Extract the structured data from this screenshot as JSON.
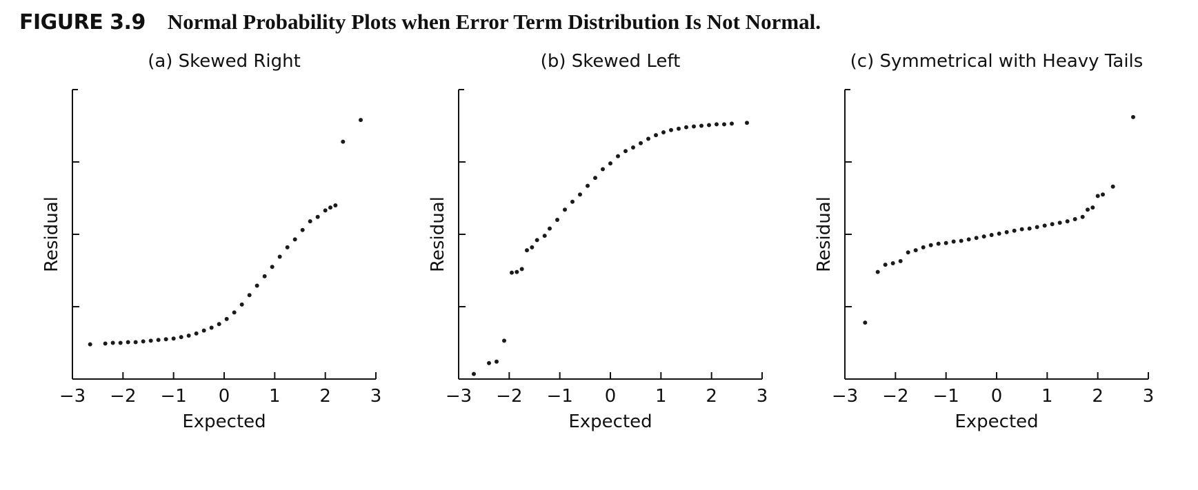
{
  "figure": {
    "label": "FIGURE 3.9",
    "title": "Normal Probability Plots when Error Term Distribution Is Not Normal."
  },
  "chart_data": [
    {
      "type": "scatter",
      "title": "(a) Skewed Right",
      "xlabel": "Expected",
      "ylabel": "Residual",
      "xlim": [
        -3,
        3
      ],
      "ylim": [
        -2,
        2
      ],
      "xticks": [
        "−3",
        "−2",
        "−1",
        "0",
        "1",
        "2",
        "3"
      ],
      "xtick_values": [
        -3,
        -2,
        -1,
        0,
        1,
        2,
        3
      ],
      "ytick_values": [
        -1,
        0,
        1
      ],
      "grid": false,
      "points": [
        [
          -2.65,
          -1.52
        ],
        [
          -2.35,
          -1.51
        ],
        [
          -2.2,
          -1.5
        ],
        [
          -2.05,
          -1.5
        ],
        [
          -1.9,
          -1.49
        ],
        [
          -1.75,
          -1.49
        ],
        [
          -1.6,
          -1.48
        ],
        [
          -1.45,
          -1.47
        ],
        [
          -1.3,
          -1.46
        ],
        [
          -1.15,
          -1.45
        ],
        [
          -1.0,
          -1.44
        ],
        [
          -0.85,
          -1.42
        ],
        [
          -0.7,
          -1.4
        ],
        [
          -0.55,
          -1.37
        ],
        [
          -0.4,
          -1.33
        ],
        [
          -0.25,
          -1.29
        ],
        [
          -0.1,
          -1.24
        ],
        [
          0.05,
          -1.17
        ],
        [
          0.2,
          -1.08
        ],
        [
          0.35,
          -0.97
        ],
        [
          0.5,
          -0.84
        ],
        [
          0.65,
          -0.71
        ],
        [
          0.8,
          -0.58
        ],
        [
          0.95,
          -0.45
        ],
        [
          1.1,
          -0.31
        ],
        [
          1.25,
          -0.18
        ],
        [
          1.4,
          -0.07
        ],
        [
          1.55,
          0.06
        ],
        [
          1.7,
          0.18
        ],
        [
          1.85,
          0.24
        ],
        [
          2.0,
          0.33
        ],
        [
          2.1,
          0.37
        ],
        [
          2.2,
          0.4
        ],
        [
          2.35,
          1.28
        ],
        [
          2.7,
          1.58
        ]
      ]
    },
    {
      "type": "scatter",
      "title": "(b) Skewed Left",
      "xlabel": "Expected",
      "ylabel": "Residual",
      "xlim": [
        -3,
        3
      ],
      "ylim": [
        -2,
        2
      ],
      "xticks": [
        "−3",
        "−2",
        "−1",
        "0",
        "1",
        "2",
        "3"
      ],
      "xtick_values": [
        -3,
        -2,
        -1,
        0,
        1,
        2,
        3
      ],
      "ytick_values": [
        -1,
        0,
        1
      ],
      "grid": false,
      "points": [
        [
          -2.7,
          -1.93
        ],
        [
          -2.4,
          -1.78
        ],
        [
          -2.25,
          -1.76
        ],
        [
          -2.1,
          -1.47
        ],
        [
          -1.95,
          -0.53
        ],
        [
          -1.85,
          -0.52
        ],
        [
          -1.75,
          -0.48
        ],
        [
          -1.65,
          -0.22
        ],
        [
          -1.55,
          -0.18
        ],
        [
          -1.45,
          -0.08
        ],
        [
          -1.3,
          -0.02
        ],
        [
          -1.2,
          0.08
        ],
        [
          -1.05,
          0.2
        ],
        [
          -0.9,
          0.34
        ],
        [
          -0.75,
          0.45
        ],
        [
          -0.6,
          0.55
        ],
        [
          -0.45,
          0.67
        ],
        [
          -0.3,
          0.78
        ],
        [
          -0.15,
          0.9
        ],
        [
          0.0,
          0.98
        ],
        [
          0.15,
          1.08
        ],
        [
          0.3,
          1.15
        ],
        [
          0.45,
          1.2
        ],
        [
          0.6,
          1.26
        ],
        [
          0.75,
          1.32
        ],
        [
          0.9,
          1.37
        ],
        [
          1.05,
          1.41
        ],
        [
          1.2,
          1.44
        ],
        [
          1.35,
          1.46
        ],
        [
          1.5,
          1.48
        ],
        [
          1.65,
          1.49
        ],
        [
          1.8,
          1.5
        ],
        [
          1.95,
          1.51
        ],
        [
          2.1,
          1.52
        ],
        [
          2.25,
          1.52
        ],
        [
          2.4,
          1.53
        ],
        [
          2.7,
          1.54
        ]
      ]
    },
    {
      "type": "scatter",
      "title": "(c) Symmetrical with Heavy Tails",
      "xlabel": "Expected",
      "ylabel": "Residual",
      "xlim": [
        -3,
        3
      ],
      "ylim": [
        -2,
        2
      ],
      "xticks": [
        "−3",
        "−2",
        "−1",
        "0",
        "1",
        "2",
        "3"
      ],
      "xtick_values": [
        -3,
        -2,
        -1,
        0,
        1,
        2,
        3
      ],
      "ytick_values": [
        -1,
        0,
        1
      ],
      "grid": false,
      "points": [
        [
          -2.6,
          -1.22
        ],
        [
          -2.35,
          -0.52
        ],
        [
          -2.2,
          -0.42
        ],
        [
          -2.05,
          -0.4
        ],
        [
          -1.9,
          -0.37
        ],
        [
          -1.75,
          -0.25
        ],
        [
          -1.6,
          -0.22
        ],
        [
          -1.45,
          -0.18
        ],
        [
          -1.3,
          -0.15
        ],
        [
          -1.15,
          -0.13
        ],
        [
          -1.0,
          -0.12
        ],
        [
          -0.85,
          -0.1
        ],
        [
          -0.7,
          -0.09
        ],
        [
          -0.55,
          -0.07
        ],
        [
          -0.4,
          -0.05
        ],
        [
          -0.25,
          -0.03
        ],
        [
          -0.1,
          -0.01
        ],
        [
          0.05,
          0.01
        ],
        [
          0.2,
          0.03
        ],
        [
          0.35,
          0.05
        ],
        [
          0.5,
          0.07
        ],
        [
          0.65,
          0.08
        ],
        [
          0.8,
          0.1
        ],
        [
          0.95,
          0.12
        ],
        [
          1.1,
          0.14
        ],
        [
          1.25,
          0.16
        ],
        [
          1.4,
          0.18
        ],
        [
          1.55,
          0.21
        ],
        [
          1.7,
          0.24
        ],
        [
          1.8,
          0.34
        ],
        [
          1.9,
          0.37
        ],
        [
          2.0,
          0.53
        ],
        [
          2.1,
          0.55
        ],
        [
          2.3,
          0.66
        ],
        [
          2.7,
          1.62
        ]
      ]
    }
  ]
}
